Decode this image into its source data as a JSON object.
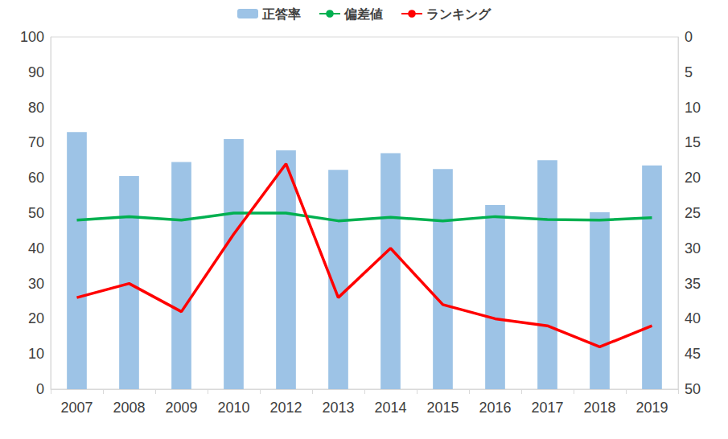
{
  "chart_data": {
    "type": "bar",
    "categories": [
      "2007",
      "2008",
      "2009",
      "2010",
      "2012",
      "2013",
      "2014",
      "2015",
      "2016",
      "2017",
      "2018",
      "2019"
    ],
    "series": [
      {
        "name": "正答率",
        "type": "bar",
        "color": "#9dc3e6",
        "values": [
          73,
          60.5,
          64.5,
          71,
          67.8,
          62.3,
          67,
          62.5,
          52.3,
          65,
          50.2,
          63.5
        ]
      },
      {
        "name": "偏差値",
        "type": "line",
        "color": "#00b050",
        "marker": "none",
        "values": [
          48,
          49,
          48,
          50,
          50,
          47.8,
          48.8,
          47.8,
          49,
          48.2,
          48,
          48.7
        ]
      },
      {
        "name": "ランキング",
        "type": "line",
        "color": "#ff0000",
        "marker": "none",
        "axis": "y2",
        "values": [
          37,
          35,
          39,
          28,
          18,
          37,
          30,
          38,
          40,
          41,
          44,
          41
        ]
      }
    ],
    "ylim": [
      0,
      100
    ],
    "yticks": [
      0,
      10,
      20,
      30,
      40,
      50,
      60,
      70,
      80,
      90,
      100
    ],
    "y2lim": [
      50,
      0
    ],
    "y2ticks": [
      0,
      5,
      10,
      15,
      20,
      25,
      30,
      35,
      40,
      45,
      50
    ],
    "grid": false,
    "legend": "top"
  }
}
